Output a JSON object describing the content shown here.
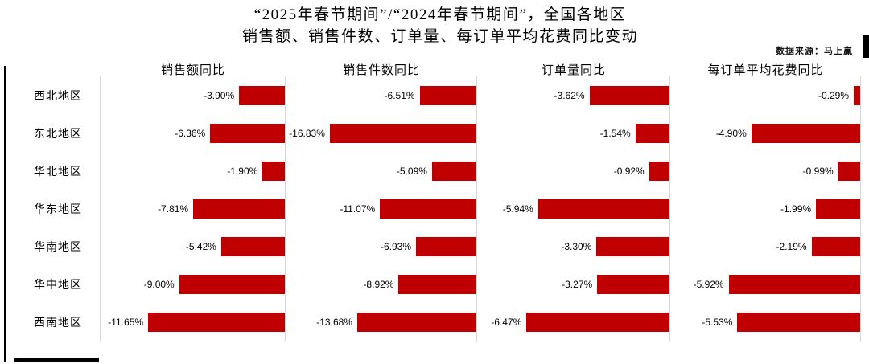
{
  "header": {
    "title_line1": "“2025年春节期间”/“2024年春节期间”，全国各地区",
    "title_line2": "销售额、销售件数、订单量、每订单平均花费同比变动",
    "source": "数据来源：马上赢"
  },
  "chart_data": {
    "type": "bar",
    "orientation": "horizontal",
    "bar_color": "#c00000",
    "zero_line": "right-edge-of-each-panel",
    "grid": "off",
    "legend": "none",
    "categories": [
      "西北地区",
      "东北地区",
      "华北地区",
      "华东地区",
      "华南地区",
      "华中地区",
      "西南地区"
    ],
    "series": [
      {
        "name": "销售额同比",
        "values": [
          -3.9,
          -6.36,
          -1.9,
          -7.81,
          -5.42,
          -9.0,
          -11.65
        ],
        "labels": [
          "-3.90%",
          "-6.36%",
          "-1.90%",
          "-7.81%",
          "-5.42%",
          "-9.00%",
          "-11.65%"
        ],
        "axis_abs_max": 15.7
      },
      {
        "name": "销售件数同比",
        "values": [
          -6.51,
          -16.83,
          -5.09,
          -11.07,
          -6.93,
          -8.92,
          -13.68
        ],
        "labels": [
          "-6.51%",
          "-16.83%",
          "-5.09%",
          "-11.07%",
          "-6.93%",
          "-8.92%",
          "-13.68%"
        ],
        "axis_abs_max": 21.9
      },
      {
        "name": "订单量同比",
        "values": [
          -3.62,
          -1.54,
          -0.92,
          -5.94,
          -3.3,
          -3.27,
          -6.47
        ],
        "labels": [
          "-3.62%",
          "-1.54%",
          "-0.92%",
          "-5.94%",
          "-3.30%",
          "-3.27%",
          "-6.47%"
        ],
        "axis_abs_max": 8.7
      },
      {
        "name": "每订单平均花费同比",
        "values": [
          -0.29,
          -4.9,
          -0.99,
          -1.99,
          -2.19,
          -5.92,
          -5.53
        ],
        "labels": [
          "-0.29%",
          "-4.90%",
          "-0.99%",
          "-1.99%",
          "-2.19%",
          "-5.92%",
          "-5.53%"
        ],
        "axis_abs_max": 8.55
      }
    ]
  }
}
